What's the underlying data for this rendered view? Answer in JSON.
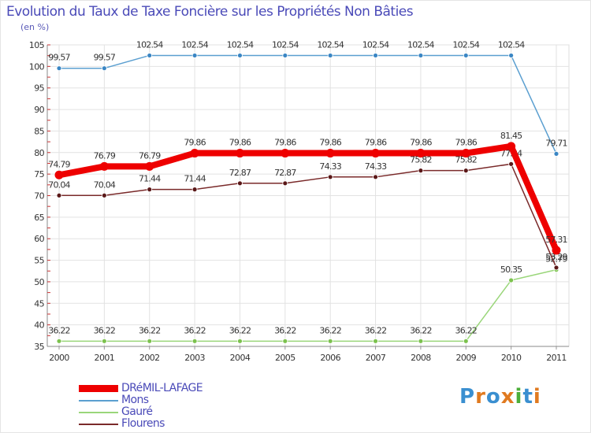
{
  "title": "Evolution du Taux de Taxe Foncière sur les Propriétés Non Bâties",
  "unit_label": "(en %)",
  "logo": {
    "letters": [
      "P",
      "r",
      "o",
      "x",
      "i",
      "t",
      "i"
    ],
    "colors": [
      "#3a8fd0",
      "#e07a20",
      "#3a8fd0",
      "#e07a20",
      "#4caf3a",
      "#3a8fd0",
      "#e07a20"
    ]
  },
  "chart_data": {
    "type": "line",
    "title": "Evolution du Taux de Taxe Foncière sur les Propriétés Non Bâties",
    "ylabel": "(en %)",
    "xlabel": "",
    "categories": [
      "2000",
      "2001",
      "2002",
      "2003",
      "2004",
      "2005",
      "2006",
      "2007",
      "2008",
      "2009",
      "2010",
      "2011"
    ],
    "ylim": [
      35,
      105
    ],
    "yticks": [
      35,
      40,
      45,
      50,
      55,
      60,
      65,
      70,
      75,
      80,
      85,
      90,
      95,
      100,
      105
    ],
    "grid": true,
    "legend_position": "bottom-left",
    "series": [
      {
        "name": "Mons",
        "color": "#5b9fd0",
        "marker": "#3a86c4",
        "values": [
          99.57,
          99.57,
          102.54,
          102.54,
          102.54,
          102.54,
          102.54,
          102.54,
          102.54,
          102.54,
          102.54,
          79.71
        ],
        "labels": [
          "99.57",
          "99.57",
          "102.54",
          "102.54",
          "102.54",
          "102.54",
          "102.54",
          "102.54",
          "102.54",
          "102.54",
          "102.54",
          "79.71"
        ]
      },
      {
        "name": "Gauré",
        "color": "#9ad67a",
        "marker": "#7cc24e",
        "values": [
          36.22,
          36.22,
          36.22,
          36.22,
          36.22,
          36.22,
          36.22,
          36.22,
          36.22,
          36.22,
          50.35,
          52.79
        ],
        "labels": [
          "36.22",
          "36.22",
          "36.22",
          "36.22",
          "36.22",
          "36.22",
          "36.22",
          "36.22",
          "36.22",
          "36.22",
          "50.35",
          "52.79"
        ]
      },
      {
        "name": "Flourens",
        "color": "#7a2a2a",
        "marker": "#5a1818",
        "values": [
          70.04,
          70.04,
          71.44,
          71.44,
          72.87,
          72.87,
          74.33,
          74.33,
          75.82,
          75.82,
          77.34,
          53.29
        ],
        "labels": [
          "70.04",
          "70.04",
          "71.44",
          "71.44",
          "72.87",
          "72.87",
          "74.33",
          "74.33",
          "75.82",
          "75.82",
          "77.34",
          "53.29"
        ]
      },
      {
        "name": "DRéMIL-LAFAGE",
        "color": "#ee0000",
        "marker": "#ee0000",
        "values": [
          74.79,
          76.79,
          76.79,
          79.86,
          79.86,
          79.86,
          79.86,
          79.86,
          79.86,
          79.86,
          81.45,
          57.31
        ],
        "labels": [
          "74.79",
          "76.79",
          "76.79",
          "79.86",
          "79.86",
          "79.86",
          "79.86",
          "79.86",
          "79.86",
          "79.86",
          "81.45",
          "57.31"
        ]
      }
    ]
  },
  "legend": {
    "items": [
      {
        "label": "DRéMIL-LAFAGE",
        "color": "#ee0000"
      },
      {
        "label": "Mons",
        "color": "#5b9fd0"
      },
      {
        "label": "Gauré",
        "color": "#9ad67a"
      },
      {
        "label": "Flourens",
        "color": "#7a2a2a"
      }
    ]
  }
}
